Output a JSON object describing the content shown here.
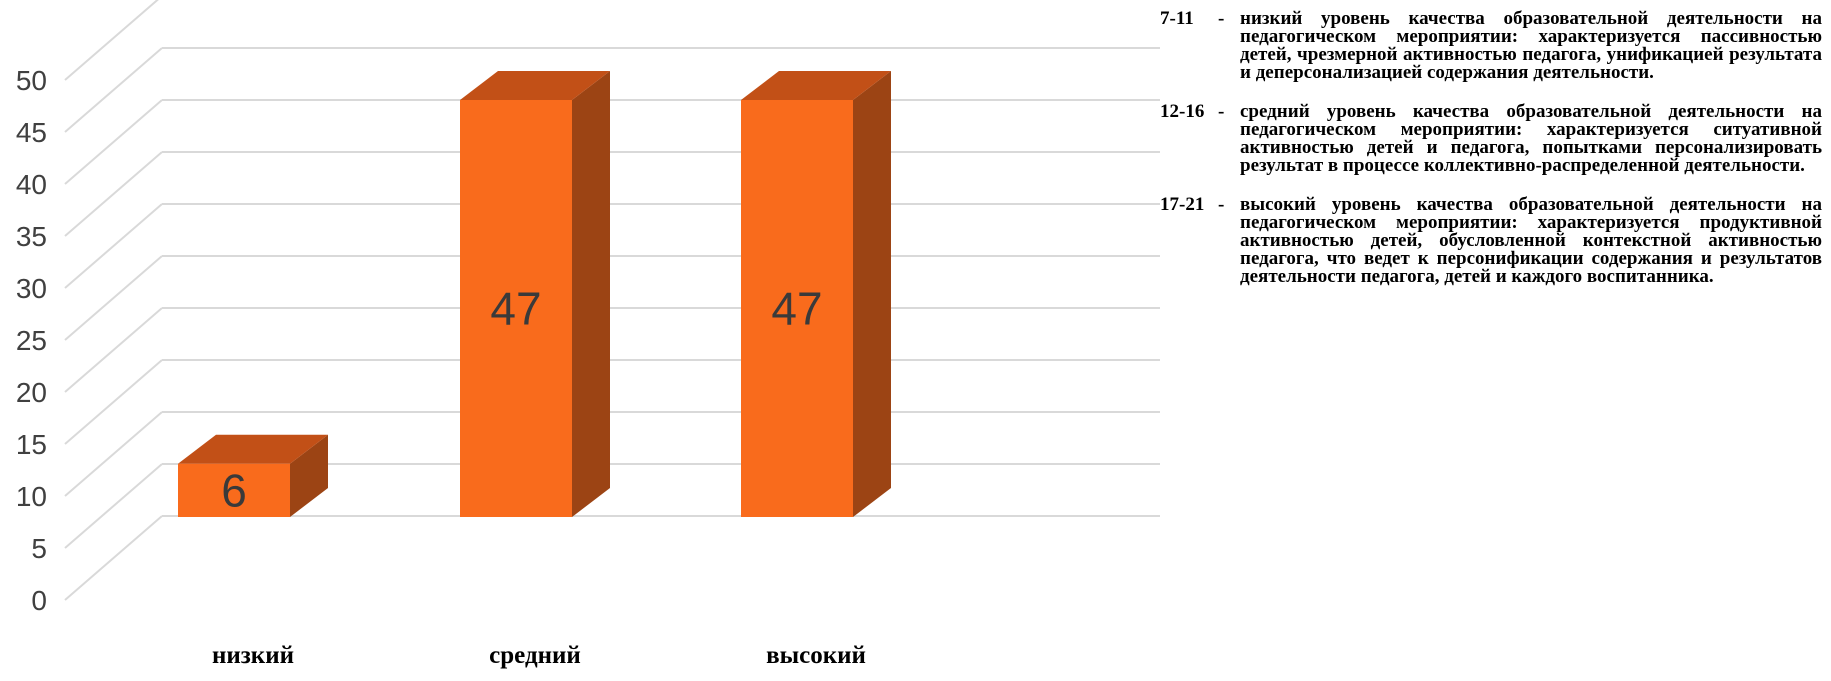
{
  "chart_data": {
    "type": "bar",
    "style": "3d-column",
    "categories": [
      "низкий",
      "средний",
      "высокий"
    ],
    "values": [
      6,
      47,
      47
    ],
    "data_labels": [
      "6",
      "47",
      "47"
    ],
    "ylim": [
      0,
      50
    ],
    "yticks": [
      0,
      5,
      10,
      15,
      20,
      25,
      30,
      35,
      40,
      45,
      50
    ],
    "grid": true,
    "colors": {
      "bar_front": "#f96b1c",
      "bar_top": "#c25017",
      "bar_side": "#9c4414",
      "grid": "#d9d9d9"
    }
  },
  "legend": [
    {
      "range": "7-11",
      "dash": "-",
      "text": "низкий уровень качества образовательной деятельности на педагогическом мероприятии: характеризуется пассивностью детей, чрезмерной активностью педагога, унификацией результата и деперсонализацией содержания деятельности."
    },
    {
      "range": "12-16",
      "dash": "-",
      "text": "средний уровень качества образовательной деятельности на педагогическом мероприятии: характеризуется ситуативной активностью детей и педагога, попытками персонализировать результат в процессе коллективно-распределенной деятельности."
    },
    {
      "range": "17-21",
      "dash": "-",
      "text": "высокий уровень качества образовательной деятельности на педагогическом мероприятии: характеризуется продуктивной активностью детей, обусловленной контекстной активностью педагога, что ведет к персонификации содержания и результатов деятельности педагога, детей и каждого воспитанника."
    }
  ]
}
